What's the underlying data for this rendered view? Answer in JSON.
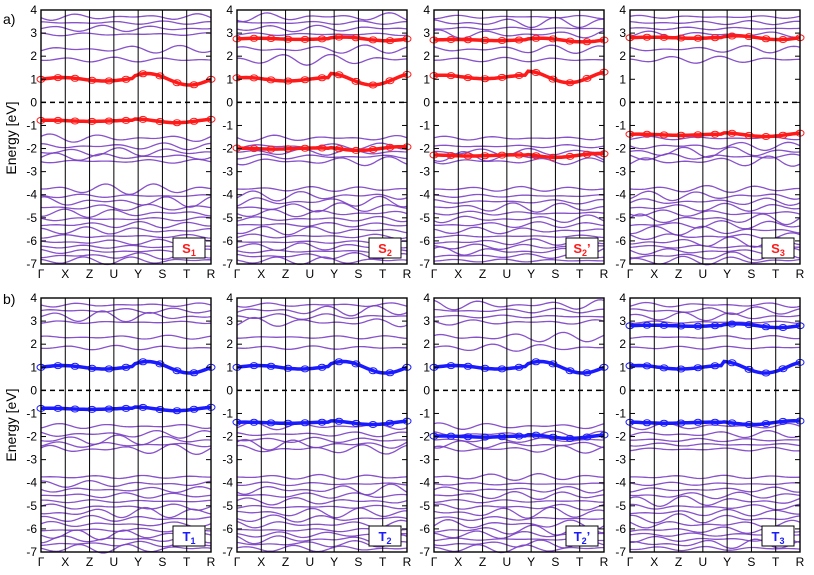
{
  "figure": {
    "ylabel": "Energy [eV]",
    "row_labels": [
      "a)",
      "b)"
    ],
    "colors": {
      "band": "#7a3fc4",
      "fermi": "#000000",
      "row_a": "#ff1a1a",
      "row_b": "#1a1aff"
    }
  },
  "chart_data": [
    {
      "type": "line",
      "row": "a",
      "col": 0,
      "tag": "S",
      "tag_sub": "1",
      "tag_suffix": "",
      "ylim": [
        -7,
        4
      ],
      "yticks": [
        -7,
        -6,
        -5,
        -4,
        -3,
        -2,
        -1,
        0,
        1,
        2,
        3,
        4
      ],
      "kpoints": [
        "Γ",
        "X",
        "Z",
        "U",
        "Y",
        "S",
        "T",
        "R"
      ],
      "fermi_level": 0,
      "highlighted_bands_eV": [
        1.0,
        -0.8
      ],
      "highlight_color": "#ff1a1a"
    },
    {
      "type": "line",
      "row": "a",
      "col": 1,
      "tag": "S",
      "tag_sub": "2",
      "tag_suffix": "",
      "ylim": [
        -7,
        4
      ],
      "yticks": [
        -7,
        -6,
        -5,
        -4,
        -3,
        -2,
        -1,
        0,
        1,
        2,
        3,
        4
      ],
      "kpoints": [
        "Γ",
        "X",
        "Z",
        "U",
        "Y",
        "S",
        "T",
        "R"
      ],
      "fermi_level": 0,
      "highlighted_bands_eV": [
        2.75,
        1.0,
        -2.0
      ],
      "highlight_color": "#ff1a1a"
    },
    {
      "type": "line",
      "row": "a",
      "col": 2,
      "tag": "S",
      "tag_sub": "2",
      "tag_suffix": "’",
      "ylim": [
        -7,
        4
      ],
      "yticks": [
        -7,
        -6,
        -5,
        -4,
        -3,
        -2,
        -1,
        0,
        1,
        2,
        3,
        4
      ],
      "kpoints": [
        "Γ",
        "X",
        "Z",
        "U",
        "Y",
        "S",
        "T",
        "R"
      ],
      "fermi_level": 0,
      "highlighted_bands_eV": [
        2.7,
        1.1,
        -2.3
      ],
      "highlight_color": "#ff1a1a"
    },
    {
      "type": "line",
      "row": "a",
      "col": 3,
      "tag": "S",
      "tag_sub": "3",
      "tag_suffix": "",
      "ylim": [
        -7,
        4
      ],
      "yticks": [
        -7,
        -6,
        -5,
        -4,
        -3,
        -2,
        -1,
        0,
        1,
        2,
        3,
        4
      ],
      "kpoints": [
        "Γ",
        "X",
        "Z",
        "U",
        "Y",
        "S",
        "T",
        "R"
      ],
      "fermi_level": 0,
      "highlighted_bands_eV": [
        2.8,
        -1.4
      ],
      "highlight_color": "#ff1a1a"
    },
    {
      "type": "line",
      "row": "b",
      "col": 0,
      "tag": "T",
      "tag_sub": "1",
      "tag_suffix": "",
      "ylim": [
        -7,
        4
      ],
      "yticks": [
        -7,
        -6,
        -5,
        -4,
        -3,
        -2,
        -1,
        0,
        1,
        2,
        3,
        4
      ],
      "kpoints": [
        "Γ",
        "X",
        "Z",
        "U",
        "Y",
        "S",
        "T",
        "R"
      ],
      "fermi_level": 0,
      "highlighted_bands_eV": [
        1.0,
        -0.8
      ],
      "highlight_color": "#1a1aff"
    },
    {
      "type": "line",
      "row": "b",
      "col": 1,
      "tag": "T",
      "tag_sub": "2",
      "tag_suffix": "",
      "ylim": [
        -7,
        4
      ],
      "yticks": [
        -7,
        -6,
        -5,
        -4,
        -3,
        -2,
        -1,
        0,
        1,
        2,
        3,
        4
      ],
      "kpoints": [
        "Γ",
        "X",
        "Z",
        "U",
        "Y",
        "S",
        "T",
        "R"
      ],
      "fermi_level": 0,
      "highlighted_bands_eV": [
        1.0,
        -1.4
      ],
      "highlight_color": "#1a1aff"
    },
    {
      "type": "line",
      "row": "b",
      "col": 2,
      "tag": "T",
      "tag_sub": "2",
      "tag_suffix": "’",
      "ylim": [
        -7,
        4
      ],
      "yticks": [
        -7,
        -6,
        -5,
        -4,
        -3,
        -2,
        -1,
        0,
        1,
        2,
        3,
        4
      ],
      "kpoints": [
        "Γ",
        "X",
        "Z",
        "U",
        "Y",
        "S",
        "T",
        "R"
      ],
      "fermi_level": 0,
      "highlighted_bands_eV": [
        1.0,
        -2.0
      ],
      "highlight_color": "#1a1aff"
    },
    {
      "type": "line",
      "row": "b",
      "col": 3,
      "tag": "T",
      "tag_sub": "3",
      "tag_suffix": "",
      "ylim": [
        -7,
        4
      ],
      "yticks": [
        -7,
        -6,
        -5,
        -4,
        -3,
        -2,
        -1,
        0,
        1,
        2,
        3,
        4
      ],
      "kpoints": [
        "Γ",
        "X",
        "Z",
        "U",
        "Y",
        "S",
        "T",
        "R"
      ],
      "fermi_level": 0,
      "highlighted_bands_eV": [
        2.8,
        1.0,
        -1.4
      ],
      "highlight_color": "#1a1aff"
    }
  ]
}
